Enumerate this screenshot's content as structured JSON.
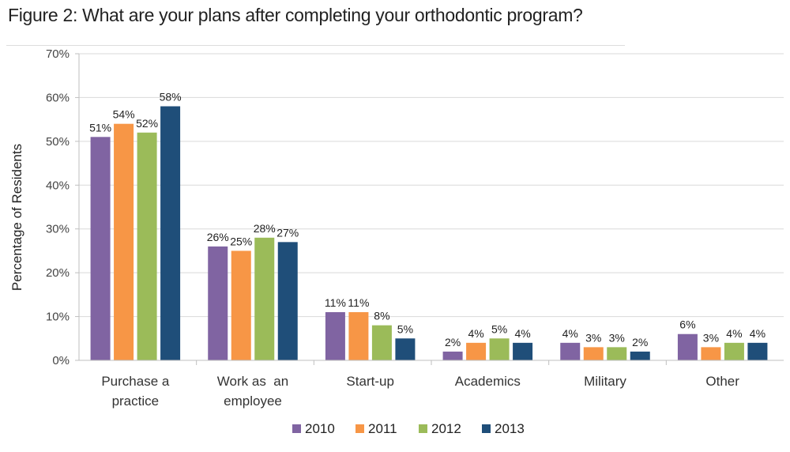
{
  "title": "Figure 2: What are your plans after completing your orthodontic program?",
  "chart_data": {
    "type": "bar",
    "title": "Figure 2: What are your plans after completing your orthodontic program?",
    "ylabel": "Percentage of Residents",
    "xlabel": "",
    "ylim": [
      0,
      70
    ],
    "yticks": [
      "0%",
      "10%",
      "20%",
      "30%",
      "40%",
      "50%",
      "60%",
      "70%"
    ],
    "grid": true,
    "legend_position": "bottom",
    "categories": [
      [
        "Purchase a",
        "practice"
      ],
      [
        "Work as  an",
        "employee"
      ],
      [
        "Start-up"
      ],
      [
        "Academics"
      ],
      [
        "Military"
      ],
      [
        "Other"
      ]
    ],
    "series": [
      {
        "name": "2010",
        "color": "#8064a2",
        "values": [
          51,
          26,
          11,
          2,
          4,
          6
        ],
        "labels": [
          "51%",
          "26%",
          "11%",
          "2%",
          "4%",
          "6%"
        ]
      },
      {
        "name": "2011",
        "color": "#f79646",
        "values": [
          54,
          25,
          11,
          4,
          3,
          3
        ],
        "labels": [
          "54%",
          "25%",
          "11%",
          "4%",
          "3%",
          "3%"
        ]
      },
      {
        "name": "2012",
        "color": "#9bbb59",
        "values": [
          52,
          28,
          8,
          5,
          3,
          4
        ],
        "labels": [
          "52%",
          "28%",
          "8%",
          "5%",
          "3%",
          "4%"
        ]
      },
      {
        "name": "2013",
        "color": "#1f4e79",
        "values": [
          58,
          27,
          5,
          4,
          2,
          4
        ],
        "labels": [
          "58%",
          "27%",
          "5%",
          "4%",
          "2%",
          "4%"
        ]
      }
    ]
  }
}
